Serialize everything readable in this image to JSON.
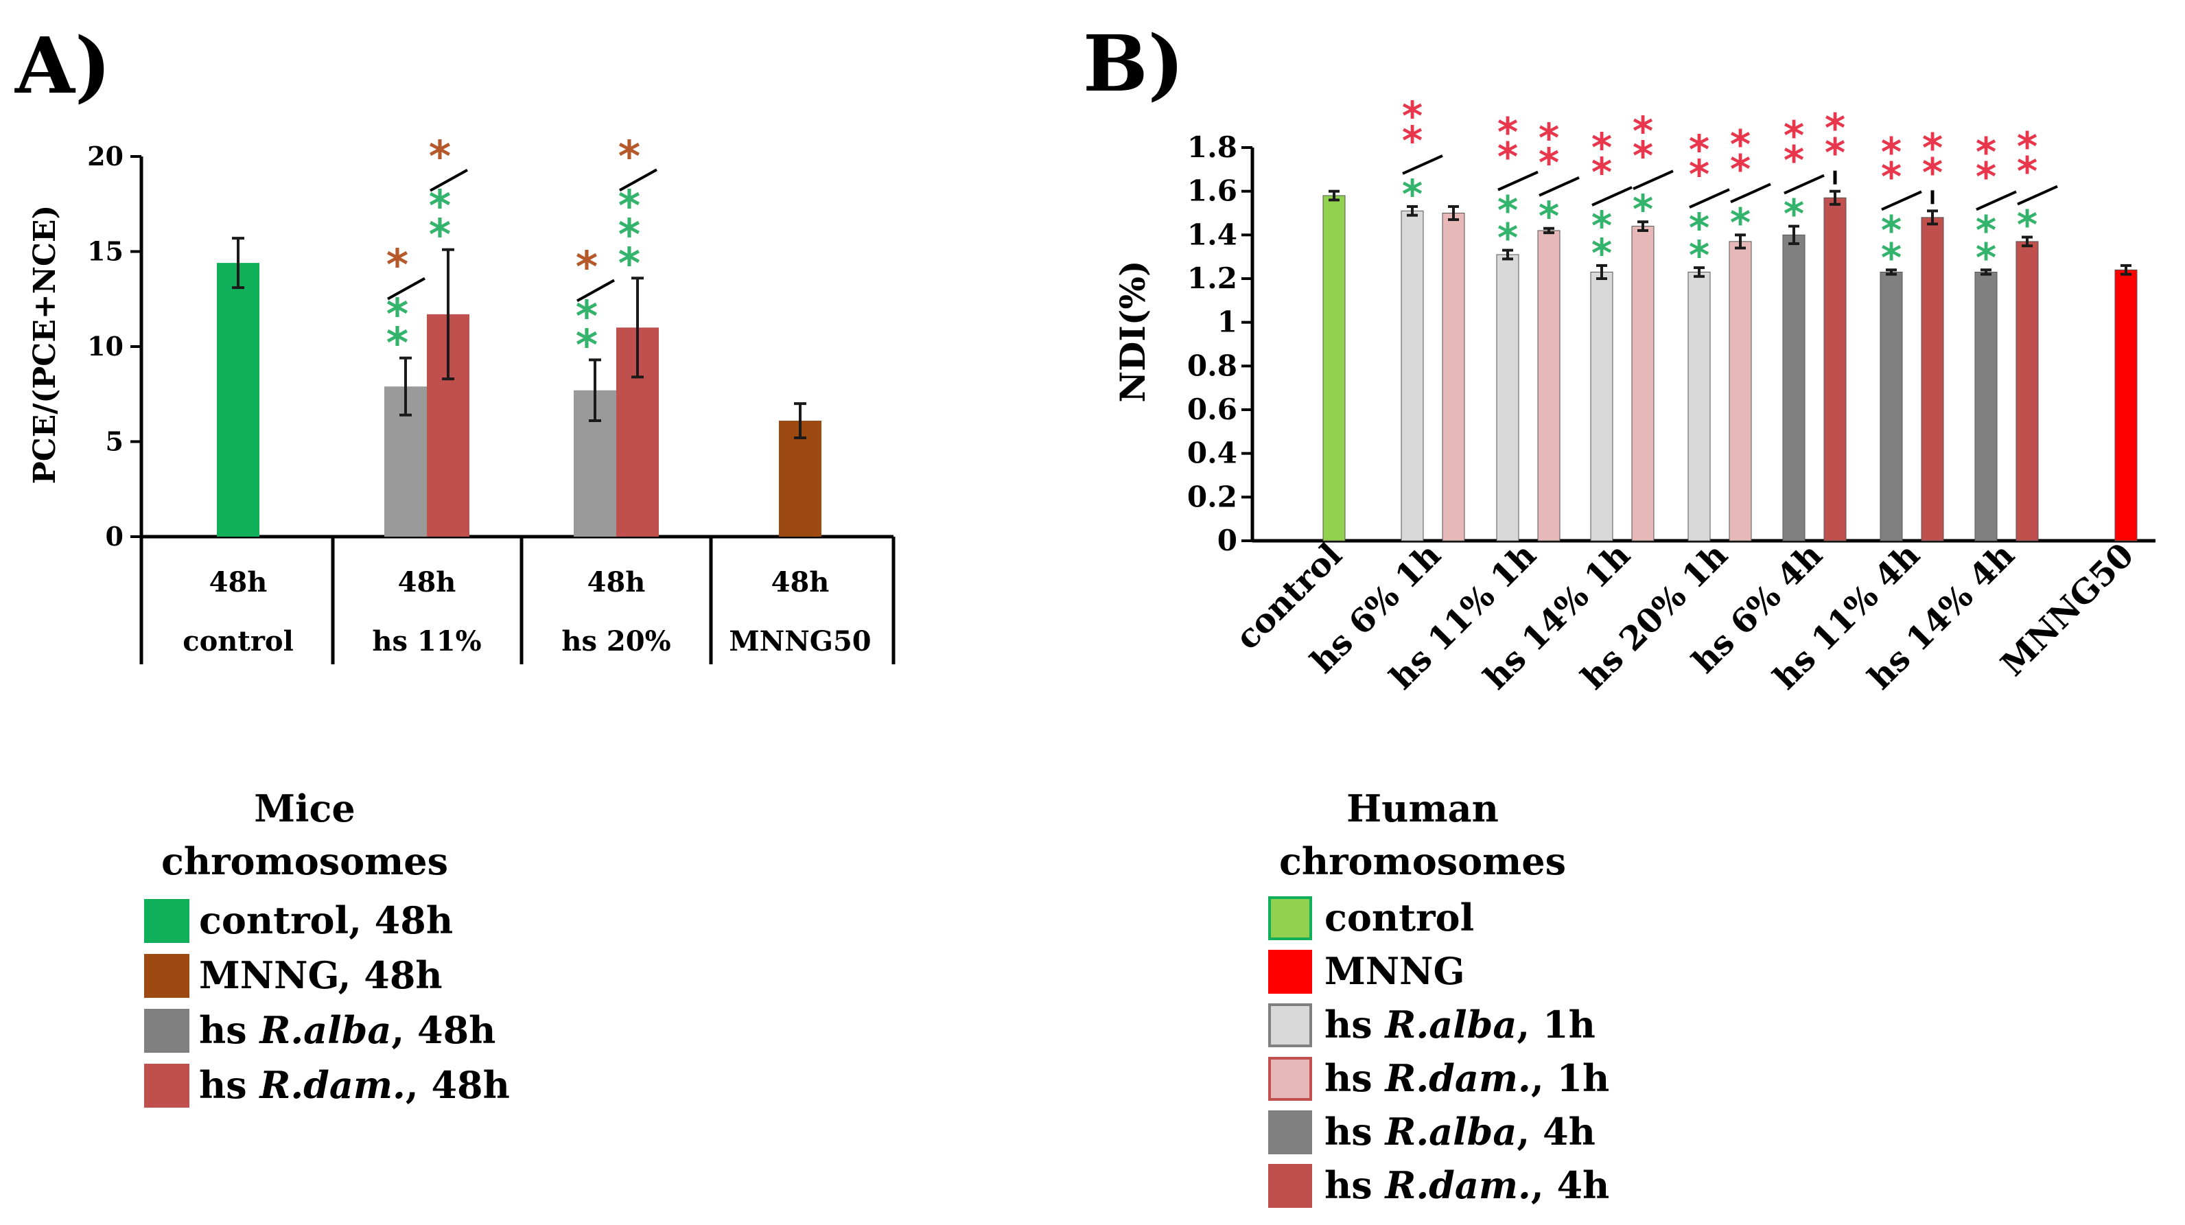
{
  "chart_data": [
    {
      "type": "bar",
      "panel_label": "A)",
      "ylabel": "PCE/(PCE+NCE)",
      "ylim": [
        0,
        20
      ],
      "yticks": [
        "0",
        "5",
        "10",
        "15",
        "20"
      ],
      "categories": [
        {
          "time": "48h",
          "name": "control"
        },
        {
          "time": "48h",
          "name": "hs 11%"
        },
        {
          "time": "48h",
          "name": "hs 20%"
        },
        {
          "time": "48h",
          "name": "MNNG50"
        }
      ],
      "bars": [
        {
          "group": 0,
          "slot": 0,
          "series": "control, 48h",
          "value": 14.4,
          "error": 1.3,
          "color": "#10b05a"
        },
        {
          "group": 1,
          "slot": 0,
          "series": "hs R.alba, 48h",
          "value": 7.9,
          "error": 1.5,
          "color": "#9a9a9a"
        },
        {
          "group": 1,
          "slot": 1,
          "series": "hs R.dam., 48h",
          "value": 11.7,
          "error": 3.4,
          "color": "#c0504d"
        },
        {
          "group": 2,
          "slot": 0,
          "series": "hs R.alba, 48h",
          "value": 7.7,
          "error": 1.6,
          "color": "#9a9a9a"
        },
        {
          "group": 2,
          "slot": 1,
          "series": "hs R.dam., 48h",
          "value": 11.0,
          "error": 2.6,
          "color": "#c0504d"
        },
        {
          "group": 3,
          "slot": 0,
          "series": "MNNG, 48h",
          "value": 6.1,
          "error": 0.9,
          "color": "#9c4a12"
        }
      ],
      "annotations": [
        {
          "bar": 1,
          "text": "**",
          "color": "#33b36b",
          "sep": "/",
          "sep_color": "#000000",
          "text2": "*",
          "color2": "#b5592b"
        },
        {
          "bar": 2,
          "text": "**",
          "color": "#33b36b",
          "sep": "/",
          "sep_color": "#000000",
          "text2": "*",
          "color2": "#b5592b"
        },
        {
          "bar": 3,
          "text": "**",
          "color": "#33b36b",
          "sep": "/",
          "sep_color": "#000000",
          "text2": "*",
          "color2": "#b5592b"
        },
        {
          "bar": 4,
          "text": "***",
          "color": "#33b36b",
          "sep": "/",
          "sep_color": "#000000",
          "text2": "*",
          "color2": "#b5592b"
        }
      ],
      "legend": {
        "title_line1": "Mice",
        "title_line2": "chromosomes",
        "items": [
          {
            "pre": "control, 48h",
            "italic": "",
            "post": "",
            "color": "#10b05a"
          },
          {
            "pre": "MNNG, 48h",
            "italic": "",
            "post": "",
            "color": "#9c4a12"
          },
          {
            "pre": "hs ",
            "italic": "R.alba",
            "post": ", 48h",
            "color": "#808080"
          },
          {
            "pre": "hs ",
            "italic": "R.dam.",
            "post": ", 48h",
            "color": "#c0504d"
          }
        ]
      }
    },
    {
      "type": "bar",
      "panel_label": "B)",
      "ylabel": "NDI(%)",
      "ylim": [
        0,
        1.8
      ],
      "yticks": [
        "0",
        "0.2",
        "0.4",
        "0.6",
        "0.8",
        "1",
        "1.2",
        "1.4",
        "1.6",
        "1.8"
      ],
      "categories": [
        "control",
        "hs 6% 1h",
        "hs 11% 1h",
        "hs 14% 1h",
        "hs 20% 1h",
        "hs 6% 4h",
        "hs 11% 4h",
        "hs 14% 4h",
        "MNNG50"
      ],
      "bars": [
        {
          "group": 0,
          "slot": 0,
          "series": "control",
          "value": 1.58,
          "error": 0.02,
          "color": "#92d050"
        },
        {
          "group": 1,
          "slot": 0,
          "series": "hs R.alba, 1h",
          "value": 1.51,
          "error": 0.02,
          "color": "#d9d9d9"
        },
        {
          "group": 1,
          "slot": 1,
          "series": "hs R.dam., 1h",
          "value": 1.5,
          "error": 0.03,
          "color": "#e6b9b8"
        },
        {
          "group": 2,
          "slot": 0,
          "series": "hs R.alba, 1h",
          "value": 1.31,
          "error": 0.02,
          "color": "#d9d9d9"
        },
        {
          "group": 2,
          "slot": 1,
          "series": "hs R.dam., 1h",
          "value": 1.42,
          "error": 0.01,
          "color": "#e6b9b8"
        },
        {
          "group": 3,
          "slot": 0,
          "series": "hs R.alba, 1h",
          "value": 1.23,
          "error": 0.03,
          "color": "#d9d9d9"
        },
        {
          "group": 3,
          "slot": 1,
          "series": "hs R.dam., 1h",
          "value": 1.44,
          "error": 0.02,
          "color": "#e6b9b8"
        },
        {
          "group": 4,
          "slot": 0,
          "series": "hs R.alba, 1h",
          "value": 1.23,
          "error": 0.02,
          "color": "#d9d9d9"
        },
        {
          "group": 4,
          "slot": 1,
          "series": "hs R.dam., 1h",
          "value": 1.37,
          "error": 0.03,
          "color": "#e6b9b8"
        },
        {
          "group": 5,
          "slot": 0,
          "series": "hs R.alba, 4h",
          "value": 1.4,
          "error": 0.04,
          "color": "#808080"
        },
        {
          "group": 5,
          "slot": 1,
          "series": "hs R.dam., 4h",
          "value": 1.57,
          "error": 0.03,
          "color": "#c0504d"
        },
        {
          "group": 6,
          "slot": 0,
          "series": "hs R.alba, 4h",
          "value": 1.23,
          "error": 0.01,
          "color": "#808080"
        },
        {
          "group": 6,
          "slot": 1,
          "series": "hs R.dam., 4h",
          "value": 1.48,
          "error": 0.03,
          "color": "#c0504d"
        },
        {
          "group": 7,
          "slot": 0,
          "series": "hs R.alba, 4h",
          "value": 1.23,
          "error": 0.01,
          "color": "#808080"
        },
        {
          "group": 7,
          "slot": 1,
          "series": "hs R.dam., 4h",
          "value": 1.37,
          "error": 0.02,
          "color": "#c0504d"
        },
        {
          "group": 8,
          "slot": 0,
          "series": "MNNG",
          "value": 1.24,
          "error": 0.02,
          "color": "#ff0000"
        }
      ],
      "annotations": [
        {
          "bar": 1,
          "text": "*",
          "color": "#33b36b",
          "sep": "/",
          "sep_color": "#000000",
          "text2": "**",
          "color2": "#e8374d"
        },
        {
          "bar": 3,
          "text": "**",
          "color": "#33b36b",
          "sep": "/",
          "sep_color": "#000000",
          "text2": "**",
          "color2": "#e8374d"
        },
        {
          "bar": 4,
          "text": "*",
          "color": "#33b36b",
          "sep": "/",
          "sep_color": "#000000",
          "text2": "**",
          "color2": "#e8374d"
        },
        {
          "bar": 5,
          "text": "**",
          "color": "#33b36b",
          "sep": "/",
          "sep_color": "#000000",
          "text2": "**",
          "color2": "#e8374d"
        },
        {
          "bar": 6,
          "text": "*",
          "color": "#33b36b",
          "sep": "/",
          "sep_color": "#000000",
          "text2": "**",
          "color2": "#e8374d"
        },
        {
          "bar": 7,
          "text": "**",
          "color": "#33b36b",
          "sep": "/",
          "sep_color": "#000000",
          "text2": "**",
          "color2": "#e8374d"
        },
        {
          "bar": 8,
          "text": "*",
          "color": "#33b36b",
          "sep": "/",
          "sep_color": "#000000",
          "text2": "**",
          "color2": "#e8374d"
        },
        {
          "bar": 9,
          "text": "*",
          "color": "#33b36b",
          "sep": "/",
          "sep_color": "#000000",
          "text2": "**",
          "color2": "#e8374d"
        },
        {
          "bar": 10,
          "text": "",
          "color": "#33b36b",
          "sep": "-",
          "sep_color": "#000000",
          "text2": "**",
          "color2": "#e8374d"
        },
        {
          "bar": 11,
          "text": "**",
          "color": "#33b36b",
          "sep": "/",
          "sep_color": "#000000",
          "text2": "**",
          "color2": "#e8374d"
        },
        {
          "bar": 12,
          "text": "",
          "color": "#33b36b",
          "sep": "-",
          "sep_color": "#000000",
          "text2": "**",
          "color2": "#e8374d"
        },
        {
          "bar": 13,
          "text": "**",
          "color": "#33b36b",
          "sep": "/",
          "sep_color": "#000000",
          "text2": "**",
          "color2": "#e8374d"
        },
        {
          "bar": 14,
          "text": "*",
          "color": "#33b36b",
          "sep": "/",
          "sep_color": "#000000",
          "text2": "**",
          "color2": "#e8374d"
        }
      ],
      "legend": {
        "title_line1": "Human",
        "title_line2": "chromosomes",
        "items": [
          {
            "pre": "control",
            "italic": "",
            "post": "",
            "color": "#92d050",
            "border": "#10b05a"
          },
          {
            "pre": "MNNG",
            "italic": "",
            "post": "",
            "color": "#ff0000",
            "border": "#ff0000"
          },
          {
            "pre": "hs ",
            "italic": "R.alba",
            "post": ", 1h",
            "color": "#d9d9d9",
            "border": "#808080"
          },
          {
            "pre": "hs ",
            "italic": "R.dam.",
            "post": ", 1h",
            "color": "#e6b9b8",
            "border": "#c0504d"
          },
          {
            "pre": "hs ",
            "italic": "R.alba",
            "post": ", 4h",
            "color": "#808080",
            "border": "#808080"
          },
          {
            "pre": "hs ",
            "italic": "R.dam.",
            "post": ", 4h",
            "color": "#c0504d",
            "border": "#c0504d"
          }
        ]
      }
    }
  ]
}
